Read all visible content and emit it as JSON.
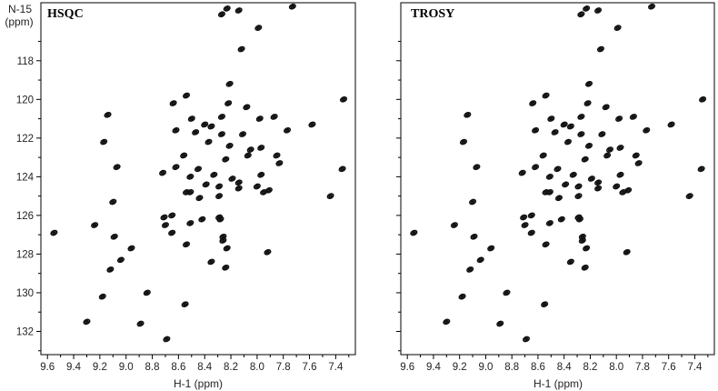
{
  "chart_data": [
    {
      "type": "scatter",
      "title": "HSQC",
      "xlabel": "H-1 (ppm)",
      "ylabel_line1": "N-15",
      "ylabel_line2": "(ppm)",
      "x_reversed": true,
      "xlim": [
        9.65,
        7.25
      ],
      "ylim": [
        115.0,
        133.2
      ],
      "x_ticks": [
        "9.6",
        "9.4",
        "9.2",
        "9.0",
        "8.8",
        "8.6",
        "8.4",
        "8.2",
        "8.0",
        "7.8",
        "7.6",
        "7.4"
      ],
      "y_ticks": [
        "118",
        "120",
        "122",
        "124",
        "126",
        "128",
        "130",
        "132"
      ],
      "series": [
        {
          "points": [
            [
              8.23,
              115.3
            ],
            [
              8.27,
              115.6
            ],
            [
              8.14,
              115.4
            ],
            [
              7.73,
              115.2
            ],
            [
              7.99,
              116.3
            ],
            [
              8.12,
              117.4
            ],
            [
              8.21,
              119.2
            ],
            [
              7.34,
              120.0
            ],
            [
              8.54,
              119.8
            ],
            [
              8.64,
              120.2
            ],
            [
              8.22,
              120.2
            ],
            [
              8.08,
              120.4
            ],
            [
              9.14,
              120.8
            ],
            [
              7.87,
              120.9
            ],
            [
              8.5,
              121.0
            ],
            [
              8.27,
              120.9
            ],
            [
              7.98,
              121.0
            ],
            [
              8.4,
              121.3
            ],
            [
              7.58,
              121.3
            ],
            [
              8.35,
              121.4
            ],
            [
              8.62,
              121.6
            ],
            [
              8.47,
              121.7
            ],
            [
              7.77,
              121.6
            ],
            [
              8.27,
              121.8
            ],
            [
              8.11,
              121.8
            ],
            [
              9.17,
              122.2
            ],
            [
              8.37,
              122.2
            ],
            [
              8.21,
              122.4
            ],
            [
              8.05,
              122.6
            ],
            [
              7.97,
              122.5
            ],
            [
              8.56,
              122.9
            ],
            [
              8.24,
              123.1
            ],
            [
              8.07,
              122.9
            ],
            [
              7.85,
              122.9
            ],
            [
              7.83,
              123.3
            ],
            [
              9.07,
              123.5
            ],
            [
              8.62,
              123.5
            ],
            [
              8.45,
              123.6
            ],
            [
              8.33,
              123.9
            ],
            [
              8.72,
              123.8
            ],
            [
              8.51,
              124.0
            ],
            [
              8.19,
              124.1
            ],
            [
              7.97,
              123.9
            ],
            [
              7.35,
              123.6
            ],
            [
              8.39,
              124.4
            ],
            [
              8.14,
              124.3
            ],
            [
              8.29,
              124.5
            ],
            [
              8.0,
              124.5
            ],
            [
              8.54,
              124.8
            ],
            [
              8.51,
              124.8
            ],
            [
              8.14,
              124.6
            ],
            [
              7.95,
              124.8
            ],
            [
              7.91,
              124.7
            ],
            [
              8.29,
              125.0
            ],
            [
              7.44,
              125.0
            ],
            [
              9.1,
              125.3
            ],
            [
              8.44,
              125.1
            ],
            [
              8.65,
              126.0
            ],
            [
              8.71,
              126.1
            ],
            [
              8.42,
              126.2
            ],
            [
              8.51,
              126.4
            ],
            [
              8.28,
              126.2
            ],
            [
              8.29,
              126.1
            ],
            [
              9.55,
              126.9
            ],
            [
              9.24,
              126.5
            ],
            [
              8.7,
              126.5
            ],
            [
              8.65,
              126.9
            ],
            [
              9.09,
              127.1
            ],
            [
              8.26,
              127.1
            ],
            [
              8.26,
              127.3
            ],
            [
              8.54,
              127.5
            ],
            [
              8.96,
              127.7
            ],
            [
              8.23,
              127.7
            ],
            [
              7.92,
              127.9
            ],
            [
              9.04,
              128.3
            ],
            [
              8.35,
              128.4
            ],
            [
              9.12,
              128.8
            ],
            [
              8.24,
              128.7
            ],
            [
              8.84,
              130.0
            ],
            [
              9.18,
              130.2
            ],
            [
              8.55,
              130.6
            ],
            [
              9.3,
              131.5
            ],
            [
              8.89,
              131.6
            ],
            [
              8.69,
              132.4
            ]
          ]
        }
      ]
    },
    {
      "type": "scatter",
      "title": "TROSY",
      "xlabel": "H-1 (ppm)",
      "x_reversed": true,
      "xlim": [
        9.65,
        7.25
      ],
      "ylim": [
        115.0,
        133.2
      ],
      "x_ticks": [
        "9.6",
        "9.4",
        "9.2",
        "9.0",
        "8.8",
        "8.6",
        "8.4",
        "8.2",
        "8.0",
        "7.8",
        "7.6",
        "7.4"
      ],
      "series": [
        {
          "points": [
            [
              8.23,
              115.3
            ],
            [
              8.27,
              115.6
            ],
            [
              8.14,
              115.4
            ],
            [
              7.73,
              115.2
            ],
            [
              7.99,
              116.3
            ],
            [
              8.12,
              117.4
            ],
            [
              8.21,
              119.2
            ],
            [
              7.34,
              120.0
            ],
            [
              8.54,
              119.8
            ],
            [
              8.64,
              120.2
            ],
            [
              8.22,
              120.2
            ],
            [
              8.08,
              120.4
            ],
            [
              9.14,
              120.8
            ],
            [
              7.87,
              120.9
            ],
            [
              8.5,
              121.0
            ],
            [
              8.27,
              120.9
            ],
            [
              7.98,
              121.0
            ],
            [
              8.4,
              121.3
            ],
            [
              7.58,
              121.3
            ],
            [
              8.35,
              121.4
            ],
            [
              8.62,
              121.6
            ],
            [
              8.47,
              121.7
            ],
            [
              7.77,
              121.6
            ],
            [
              8.27,
              121.8
            ],
            [
              8.11,
              121.8
            ],
            [
              9.17,
              122.2
            ],
            [
              8.37,
              122.2
            ],
            [
              8.21,
              122.4
            ],
            [
              8.05,
              122.6
            ],
            [
              7.97,
              122.5
            ],
            [
              8.56,
              122.9
            ],
            [
              8.24,
              123.1
            ],
            [
              8.07,
              122.9
            ],
            [
              7.85,
              122.9
            ],
            [
              7.83,
              123.3
            ],
            [
              9.07,
              123.5
            ],
            [
              8.62,
              123.5
            ],
            [
              8.45,
              123.6
            ],
            [
              8.33,
              123.9
            ],
            [
              8.72,
              123.8
            ],
            [
              8.51,
              124.0
            ],
            [
              8.19,
              124.1
            ],
            [
              7.97,
              123.9
            ],
            [
              7.35,
              123.6
            ],
            [
              8.39,
              124.4
            ],
            [
              8.14,
              124.3
            ],
            [
              8.29,
              124.5
            ],
            [
              8.0,
              124.5
            ],
            [
              8.54,
              124.8
            ],
            [
              8.51,
              124.8
            ],
            [
              8.14,
              124.6
            ],
            [
              7.95,
              124.8
            ],
            [
              7.91,
              124.7
            ],
            [
              8.29,
              125.0
            ],
            [
              7.44,
              125.0
            ],
            [
              9.1,
              125.3
            ],
            [
              8.44,
              125.1
            ],
            [
              8.65,
              126.0
            ],
            [
              8.71,
              126.1
            ],
            [
              8.42,
              126.2
            ],
            [
              8.51,
              126.4
            ],
            [
              8.28,
              126.2
            ],
            [
              8.29,
              126.1
            ],
            [
              9.55,
              126.9
            ],
            [
              9.24,
              126.5
            ],
            [
              8.7,
              126.5
            ],
            [
              8.65,
              126.9
            ],
            [
              9.09,
              127.1
            ],
            [
              8.26,
              127.1
            ],
            [
              8.26,
              127.3
            ],
            [
              8.54,
              127.5
            ],
            [
              8.96,
              127.7
            ],
            [
              8.23,
              127.7
            ],
            [
              7.92,
              127.9
            ],
            [
              9.04,
              128.3
            ],
            [
              8.35,
              128.4
            ],
            [
              9.12,
              128.8
            ],
            [
              8.24,
              128.7
            ],
            [
              8.84,
              130.0
            ],
            [
              9.18,
              130.2
            ],
            [
              8.55,
              130.6
            ],
            [
              9.3,
              131.5
            ],
            [
              8.89,
              131.6
            ],
            [
              8.69,
              132.4
            ]
          ]
        }
      ]
    }
  ]
}
